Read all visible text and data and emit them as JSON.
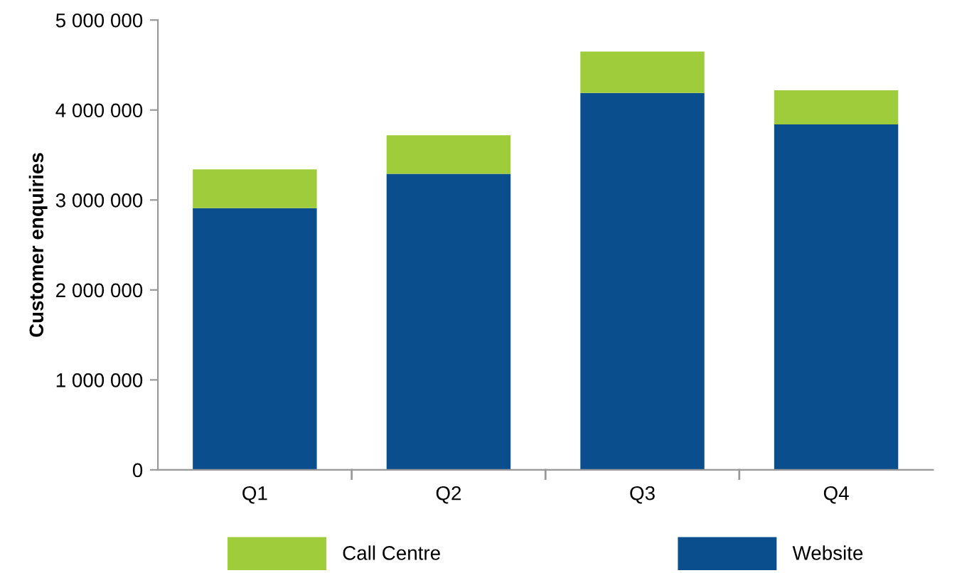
{
  "chart_data": {
    "type": "bar",
    "stacked": true,
    "ylabel": "Customer enquiries",
    "categories": [
      "Q1",
      "Q2",
      "Q3",
      "Q4"
    ],
    "series": [
      {
        "name": "Website",
        "color": "#0a4e8e",
        "values": [
          2910000,
          3290000,
          4190000,
          3840000
        ]
      },
      {
        "name": "Call Centre",
        "color": "#9fcc3a",
        "values": [
          430000,
          430000,
          460000,
          380000
        ]
      }
    ],
    "ylim": [
      0,
      5000000
    ],
    "yticks": [
      0,
      {
        "value": 1000000,
        "label": "1 000 000"
      },
      {
        "value": 2000000,
        "label": "2 000 000"
      },
      {
        "value": 3000000,
        "label": "3 000 000"
      },
      {
        "value": 4000000,
        "label": "4 000 000"
      },
      {
        "value": 5000000,
        "label": "5 000 000"
      }
    ],
    "grid": false,
    "legend": "bottom"
  }
}
